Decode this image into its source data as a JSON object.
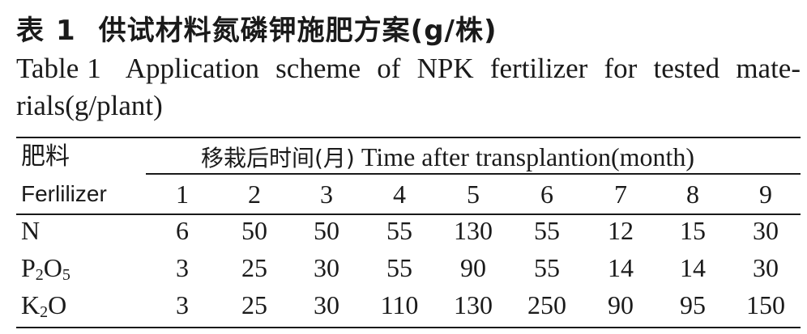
{
  "caption": {
    "cn_table_label": "表",
    "cn_table_number": "1",
    "cn_title": "供试材料氮磷钾施肥方案(g/株)",
    "en_table_label": "Table",
    "en_table_number": "1",
    "en_title": "Application scheme of NPK fertilizer for tested mate-rials(g/plant)"
  },
  "table": {
    "header_cn": "肥料",
    "header_en": "Ferlilizer",
    "span_header_cn": "移栽后时间(月)",
    "span_header_en": "Time after transplantion(month)",
    "months": [
      "1",
      "2",
      "3",
      "4",
      "5",
      "6",
      "7",
      "8",
      "9"
    ],
    "rows": [
      {
        "base": "N",
        "label_parts": [
          {
            "t": "N"
          }
        ],
        "values": [
          "6",
          "50",
          "50",
          "55",
          "130",
          "55",
          "12",
          "15",
          "30"
        ]
      },
      {
        "base": "P2O5",
        "label_parts": [
          {
            "t": "P"
          },
          {
            "t": "2",
            "sub": true
          },
          {
            "t": "O"
          },
          {
            "t": "5",
            "sub": true
          }
        ],
        "values": [
          "3",
          "25",
          "30",
          "55",
          "90",
          "55",
          "14",
          "14",
          "30"
        ]
      },
      {
        "base": "K2O",
        "label_parts": [
          {
            "t": "K"
          },
          {
            "t": "2",
            "sub": true
          },
          {
            "t": "O"
          }
        ],
        "values": [
          "3",
          "25",
          "30",
          "110",
          "130",
          "250",
          "90",
          "95",
          "150"
        ]
      }
    ]
  }
}
